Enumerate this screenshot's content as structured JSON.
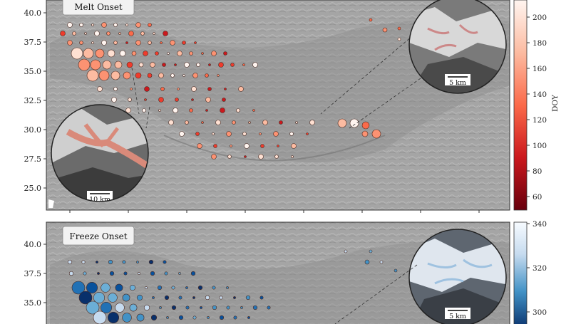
{
  "panels": [
    {
      "id": "melt",
      "title": "Melt Onset",
      "scale_bars": [
        "10 km",
        "5 km"
      ],
      "colorbar": {
        "label": "DOY",
        "ticks": [
          "60",
          "80",
          "100",
          "120",
          "140",
          "160",
          "180",
          "200"
        ],
        "colors": [
          "#67000d",
          "#cb181d",
          "#fb6a4a",
          "#fcbba1",
          "#fff5f0"
        ]
      }
    },
    {
      "id": "freeze",
      "title": "Freeze Onset",
      "scale_bars": [
        "5 km"
      ],
      "colorbar": {
        "label": "",
        "ticks": [
          "300",
          "320",
          "340"
        ],
        "colors": [
          "#08306b",
          "#4292c6",
          "#c6dbef",
          "#f7fbff"
        ]
      }
    }
  ],
  "yticks_top": [
    "40.0",
    "37.5",
    "35.0",
    "32.5",
    "30.0",
    "27.5",
    "25.0"
  ],
  "yticks_bottom": [
    "40.0",
    "37.5",
    "35.0"
  ]
}
